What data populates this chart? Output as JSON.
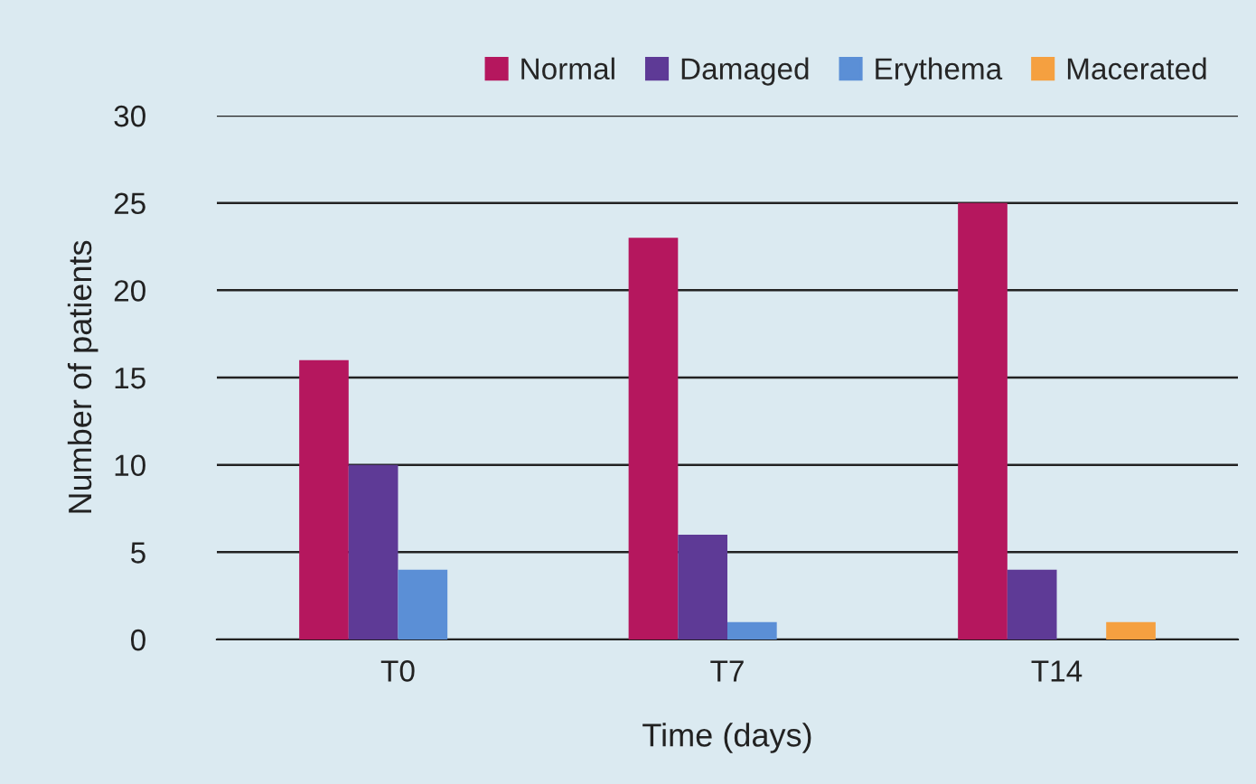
{
  "chart_data": {
    "type": "bar",
    "xlabel": "Time (days)",
    "ylabel": "Number of patients",
    "categories": [
      "T0",
      "T7",
      "T14"
    ],
    "series": [
      {
        "name": "Normal",
        "color": "#b5175e",
        "values": [
          16,
          23,
          25
        ]
      },
      {
        "name": "Damaged",
        "color": "#5e3a96",
        "values": [
          10,
          6,
          4
        ]
      },
      {
        "name": "Erythema",
        "color": "#5b8fd6",
        "values": [
          4,
          1,
          0
        ]
      },
      {
        "name": "Macerated",
        "color": "#f5a040",
        "values": [
          0,
          0,
          1
        ]
      }
    ],
    "ylim": [
      0,
      30
    ],
    "yticks": [
      0,
      5,
      10,
      15,
      20,
      25,
      30
    ],
    "grid": "y",
    "legend": "top right"
  }
}
